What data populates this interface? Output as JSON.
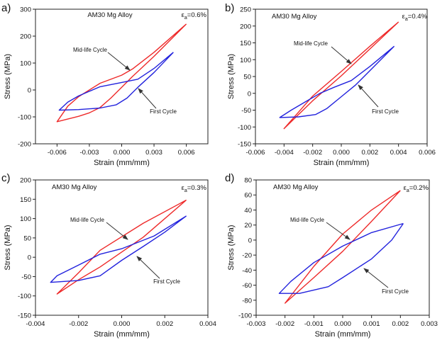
{
  "chart_data": [
    {
      "type": "line",
      "panel_label": "a)",
      "title": "AM30 Mg Alloy",
      "epsilon_label": {
        "symbol": "ε",
        "subscript": "a",
        "value": "=0.6%"
      },
      "xlabel": "Strain (mm/mm)",
      "ylabel": "Stress (MPa)",
      "xlim": [
        -0.008,
        0.008
      ],
      "ylim": [
        -200,
        300
      ],
      "xticks": [
        -0.006,
        -0.003,
        0,
        0.003,
        0.006
      ],
      "xtick_labels": [
        "-0.006",
        "-0.003",
        "0.000",
        "0.003",
        "0.006"
      ],
      "yticks": [
        -200,
        -100,
        0,
        100,
        200,
        300
      ],
      "ytick_labels": [
        "-200",
        "-100",
        "0",
        "100",
        "200",
        "300"
      ],
      "annotations": [
        "Mid-life Cycle",
        "First Cycle"
      ],
      "series": [
        {
          "name": "Mid-life Cycle",
          "color": "#ee2a2a",
          "x": [
            0.006,
            0.003,
            0.001,
            0,
            -0.002,
            -0.003,
            -0.004,
            -0.005,
            -0.006,
            -0.004,
            -0.003,
            -0.002,
            -0.001,
            0,
            0.001,
            0.003,
            0.006
          ],
          "y": [
            245,
            140,
            78,
            55,
            25,
            0,
            -25,
            -60,
            -118,
            -98,
            -85,
            -65,
            -30,
            10,
            50,
            125,
            245
          ]
        },
        {
          "name": "First Cycle",
          "color": "#2222dd",
          "x": [
            0.0048,
            0.003,
            0.0015,
            0,
            -0.002,
            -0.003,
            -0.004,
            -0.005,
            -0.0058,
            -0.004,
            -0.002,
            -0.0005,
            0.0005,
            0.0015,
            0.003,
            0.0048
          ],
          "y": [
            140,
            80,
            40,
            28,
            12,
            -5,
            -22,
            -45,
            -75,
            -73,
            -67,
            -55,
            -30,
            10,
            65,
            140
          ]
        }
      ]
    },
    {
      "type": "line",
      "panel_label": "b)",
      "title": "AM30 Mg Alloy",
      "epsilon_label": {
        "symbol": "ε",
        "subscript": "a",
        "value": "=0.4%"
      },
      "xlabel": "Strain (mm/mm)",
      "ylabel": "Stress (MPa)",
      "xlim": [
        -0.006,
        0.006
      ],
      "ylim": [
        -150,
        250
      ],
      "xticks": [
        -0.006,
        -0.004,
        -0.002,
        0,
        0.002,
        0.004,
        0.006
      ],
      "xtick_labels": [
        "-0.006",
        "-0.004",
        "-0.002",
        "0.000",
        "0.002",
        "0.004",
        "0.006"
      ],
      "yticks": [
        -150,
        -100,
        -50,
        0,
        50,
        100,
        150,
        200,
        250
      ],
      "ytick_labels": [
        "-150",
        "-100",
        "-50",
        "0",
        "50",
        "100",
        "150",
        "200",
        "250"
      ],
      "annotations": [
        "Mid-life Cycle",
        "First Cycle"
      ],
      "series": [
        {
          "name": "Mid-life Cycle",
          "color": "#ee2a2a",
          "x": [
            0.004,
            0.002,
            0,
            -0.002,
            -0.004,
            -0.002,
            0,
            0.002,
            0.004
          ],
          "y": [
            212,
            140,
            65,
            -8,
            -105,
            -22,
            52,
            132,
            212
          ]
        },
        {
          "name": "First Cycle",
          "color": "#2222dd",
          "x": [
            0.0037,
            0.002,
            0.0007,
            -0.0005,
            -0.0015,
            -0.0025,
            -0.0035,
            -0.0043,
            -0.003,
            -0.0018,
            -0.001,
            0,
            0.001,
            0.0037
          ],
          "y": [
            140,
            80,
            38,
            18,
            0,
            -25,
            -50,
            -72,
            -70,
            -63,
            -45,
            -10,
            25,
            140
          ]
        }
      ]
    },
    {
      "type": "line",
      "panel_label": "c)",
      "title": "AM30 Mg Alloy",
      "epsilon_label": {
        "symbol": "ε",
        "subscript": "a",
        "value": "=0.3%"
      },
      "xlabel": "Strain (mm/mm)",
      "ylabel": "Stress (MPa)",
      "xlim": [
        -0.004,
        0.004
      ],
      "ylim": [
        -150,
        200
      ],
      "xticks": [
        -0.004,
        -0.002,
        0,
        0.002,
        0.004
      ],
      "xtick_labels": [
        "-0.004",
        "-0.002",
        "0.000",
        "0.002",
        "0.004"
      ],
      "yticks": [
        -150,
        -100,
        -50,
        0,
        50,
        100,
        150,
        200
      ],
      "ytick_labels": [
        "-150",
        "-100",
        "-50",
        "0",
        "50",
        "100",
        "150",
        "200"
      ],
      "annotations": [
        "Mid-life Cycle",
        "First Cycle"
      ],
      "series": [
        {
          "name": "Mid-life Cycle",
          "color": "#ee2a2a",
          "x": [
            0.003,
            0.001,
            -0.001,
            -0.002,
            -0.003,
            -0.002,
            -0.001,
            0.001,
            0.003
          ],
          "y": [
            148,
            88,
            18,
            -40,
            -95,
            -58,
            -25,
            52,
            148
          ]
        },
        {
          "name": "First Cycle",
          "color": "#2222dd",
          "x": [
            0.003,
            0.0015,
            0,
            -0.001,
            -0.002,
            -0.003,
            -0.0033,
            -0.002,
            -0.001,
            0,
            0.001,
            0.002,
            0.003
          ],
          "y": [
            107,
            55,
            22,
            8,
            -20,
            -48,
            -65,
            -60,
            -48,
            -8,
            28,
            65,
            107
          ]
        }
      ]
    },
    {
      "type": "line",
      "panel_label": "d)",
      "title": "AM30 Mg Alloy",
      "epsilon_label": {
        "symbol": "ε",
        "subscript": "a",
        "value": "=0.2%"
      },
      "xlabel": "Strain (mm/mm)",
      "ylabel": "Stress (MPa)",
      "xlim": [
        -0.003,
        0.003
      ],
      "ylim": [
        -100,
        80
      ],
      "xticks": [
        -0.003,
        -0.002,
        -0.001,
        0,
        0.001,
        0.002,
        0.003
      ],
      "xtick_labels": [
        "-0.003",
        "-0.002",
        "-0.001",
        "0.000",
        "0.001",
        "0.002",
        "0.003"
      ],
      "yticks": [
        -100,
        -80,
        -60,
        -40,
        -20,
        0,
        20,
        40,
        60,
        80
      ],
      "ytick_labels": [
        "-100",
        "-80",
        "-60",
        "-40",
        "-20",
        "0",
        "20",
        "40",
        "60",
        "80"
      ],
      "annotations": [
        "Mid-life Cycle",
        "First Cycle"
      ],
      "series": [
        {
          "name": "Mid-life Cycle",
          "color": "#ee2a2a",
          "x": [
            0.002,
            0.001,
            0,
            -0.001,
            -0.002,
            -0.001,
            0,
            0.001,
            0.002
          ],
          "y": [
            66,
            40,
            8,
            -35,
            -84,
            -50,
            -15,
            25,
            66
          ]
        },
        {
          "name": "First Cycle",
          "color": "#2222dd",
          "x": [
            0.0021,
            0.001,
            0,
            -0.001,
            -0.0018,
            -0.0022,
            -0.0015,
            -0.0005,
            0,
            0.001,
            0.0017,
            0.0021
          ],
          "y": [
            22,
            10,
            -8,
            -30,
            -55,
            -71,
            -71,
            -62,
            -50,
            -25,
            0,
            22
          ]
        }
      ]
    }
  ]
}
